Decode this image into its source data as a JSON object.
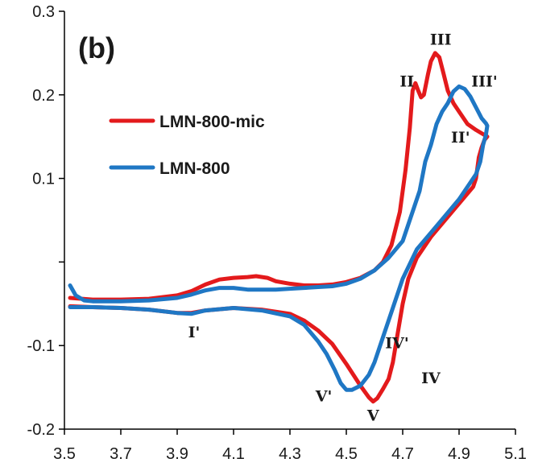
{
  "chart_data": {
    "type": "line",
    "panel_label": "(b)",
    "title": "",
    "xlabel": "",
    "ylabel": "",
    "xlim": [
      3.5,
      5.1
    ],
    "ylim": [
      -0.2,
      0.3
    ],
    "x_ticks": [
      "3.5",
      "3.7",
      "3.9",
      "4.1",
      "4.3",
      "4.5",
      "4.7",
      "4.9",
      "5.1"
    ],
    "y_ticks": [
      "0.3",
      "0.2",
      "0.1",
      "",
      "-0.1",
      "-0.2"
    ],
    "x_tick_values": [
      3.5,
      3.7,
      3.9,
      4.1,
      4.3,
      4.5,
      4.7,
      4.9,
      5.1
    ],
    "y_tick_values": [
      0.3,
      0.2,
      0.1,
      0.0,
      -0.1,
      -0.2
    ],
    "grid": false,
    "legend_position": "upper-left",
    "series": [
      {
        "name": "LMN-800-mic",
        "color": "#e31a1c",
        "points": [
          [
            3.52,
            -0.043
          ],
          [
            3.6,
            -0.045
          ],
          [
            3.7,
            -0.045
          ],
          [
            3.8,
            -0.044
          ],
          [
            3.9,
            -0.04
          ],
          [
            3.95,
            -0.035
          ],
          [
            4.0,
            -0.027
          ],
          [
            4.05,
            -0.021
          ],
          [
            4.1,
            -0.019
          ],
          [
            4.15,
            -0.018
          ],
          [
            4.18,
            -0.017
          ],
          [
            4.22,
            -0.019
          ],
          [
            4.25,
            -0.023
          ],
          [
            4.3,
            -0.026
          ],
          [
            4.35,
            -0.028
          ],
          [
            4.4,
            -0.028
          ],
          [
            4.45,
            -0.027
          ],
          [
            4.5,
            -0.024
          ],
          [
            4.55,
            -0.019
          ],
          [
            4.6,
            -0.01
          ],
          [
            4.63,
            0.0
          ],
          [
            4.66,
            0.02
          ],
          [
            4.69,
            0.06
          ],
          [
            4.71,
            0.11
          ],
          [
            4.725,
            0.16
          ],
          [
            4.735,
            0.205
          ],
          [
            4.745,
            0.214
          ],
          [
            4.755,
            0.205
          ],
          [
            4.765,
            0.197
          ],
          [
            4.775,
            0.2
          ],
          [
            4.79,
            0.225
          ],
          [
            4.8,
            0.24
          ],
          [
            4.815,
            0.25
          ],
          [
            4.83,
            0.245
          ],
          [
            4.845,
            0.225
          ],
          [
            4.86,
            0.205
          ],
          [
            4.88,
            0.19
          ],
          [
            4.9,
            0.18
          ],
          [
            4.93,
            0.165
          ],
          [
            4.96,
            0.158
          ],
          [
            4.99,
            0.152
          ],
          [
            5.0,
            0.15
          ],
          [
            4.99,
            0.146
          ],
          [
            4.98,
            0.137
          ],
          [
            4.97,
            0.125
          ],
          [
            4.96,
            0.1
          ],
          [
            4.95,
            0.09
          ],
          [
            4.9,
            0.07
          ],
          [
            4.85,
            0.05
          ],
          [
            4.8,
            0.03
          ],
          [
            4.75,
            0.005
          ],
          [
            4.72,
            -0.02
          ],
          [
            4.7,
            -0.05
          ],
          [
            4.68,
            -0.09
          ],
          [
            4.665,
            -0.12
          ],
          [
            4.65,
            -0.14
          ],
          [
            4.63,
            -0.152
          ],
          [
            4.61,
            -0.163
          ],
          [
            4.595,
            -0.167
          ],
          [
            4.58,
            -0.162
          ],
          [
            4.55,
            -0.148
          ],
          [
            4.5,
            -0.122
          ],
          [
            4.45,
            -0.098
          ],
          [
            4.4,
            -0.082
          ],
          [
            4.35,
            -0.07
          ],
          [
            4.3,
            -0.062
          ],
          [
            4.2,
            -0.057
          ],
          [
            4.1,
            -0.055
          ],
          [
            4.0,
            -0.058
          ],
          [
            3.95,
            -0.061
          ],
          [
            3.9,
            -0.061
          ],
          [
            3.8,
            -0.057
          ],
          [
            3.7,
            -0.055
          ],
          [
            3.6,
            -0.054
          ],
          [
            3.52,
            -0.053
          ]
        ]
      },
      {
        "name": "LMN-800",
        "color": "#1f77c4",
        "points": [
          [
            3.52,
            -0.028
          ],
          [
            3.54,
            -0.04
          ],
          [
            3.57,
            -0.046
          ],
          [
            3.6,
            -0.047
          ],
          [
            3.7,
            -0.047
          ],
          [
            3.8,
            -0.046
          ],
          [
            3.9,
            -0.043
          ],
          [
            3.95,
            -0.039
          ],
          [
            4.0,
            -0.034
          ],
          [
            4.05,
            -0.031
          ],
          [
            4.1,
            -0.031
          ],
          [
            4.15,
            -0.033
          ],
          [
            4.2,
            -0.033
          ],
          [
            4.25,
            -0.033
          ],
          [
            4.3,
            -0.032
          ],
          [
            4.35,
            -0.031
          ],
          [
            4.4,
            -0.03
          ],
          [
            4.45,
            -0.029
          ],
          [
            4.5,
            -0.026
          ],
          [
            4.55,
            -0.02
          ],
          [
            4.6,
            -0.01
          ],
          [
            4.65,
            0.005
          ],
          [
            4.7,
            0.025
          ],
          [
            4.72,
            0.045
          ],
          [
            4.74,
            0.065
          ],
          [
            4.76,
            0.085
          ],
          [
            4.78,
            0.12
          ],
          [
            4.8,
            0.14
          ],
          [
            4.82,
            0.165
          ],
          [
            4.84,
            0.18
          ],
          [
            4.86,
            0.19
          ],
          [
            4.88,
            0.204
          ],
          [
            4.9,
            0.21
          ],
          [
            4.92,
            0.207
          ],
          [
            4.94,
            0.198
          ],
          [
            4.96,
            0.185
          ],
          [
            4.98,
            0.172
          ],
          [
            4.995,
            0.166
          ],
          [
            5.0,
            0.163
          ],
          [
            4.995,
            0.152
          ],
          [
            4.985,
            0.14
          ],
          [
            4.975,
            0.12
          ],
          [
            4.96,
            0.105
          ],
          [
            4.93,
            0.09
          ],
          [
            4.9,
            0.075
          ],
          [
            4.85,
            0.055
          ],
          [
            4.8,
            0.035
          ],
          [
            4.75,
            0.015
          ],
          [
            4.7,
            -0.02
          ],
          [
            4.68,
            -0.04
          ],
          [
            4.65,
            -0.07
          ],
          [
            4.62,
            -0.1
          ],
          [
            4.6,
            -0.12
          ],
          [
            4.58,
            -0.135
          ],
          [
            4.55,
            -0.148
          ],
          [
            4.52,
            -0.153
          ],
          [
            4.5,
            -0.153
          ],
          [
            4.48,
            -0.145
          ],
          [
            4.46,
            -0.13
          ],
          [
            4.43,
            -0.11
          ],
          [
            4.4,
            -0.095
          ],
          [
            4.35,
            -0.075
          ],
          [
            4.3,
            -0.065
          ],
          [
            4.2,
            -0.058
          ],
          [
            4.1,
            -0.055
          ],
          [
            4.0,
            -0.058
          ],
          [
            3.95,
            -0.062
          ],
          [
            3.9,
            -0.061
          ],
          [
            3.8,
            -0.057
          ],
          [
            3.7,
            -0.055
          ],
          [
            3.6,
            -0.054
          ],
          [
            3.52,
            -0.054
          ]
        ]
      }
    ],
    "annotations": [
      {
        "text": "II",
        "x": 4.715,
        "y": 0.21
      },
      {
        "text": "III",
        "x": 4.835,
        "y": 0.26
      },
      {
        "text": "III'",
        "x": 4.99,
        "y": 0.21
      },
      {
        "text": "II'",
        "x": 4.905,
        "y": 0.143
      },
      {
        "text": "I'",
        "x": 3.96,
        "y": -0.09
      },
      {
        "text": "IV'",
        "x": 4.68,
        "y": -0.103
      },
      {
        "text": "IV",
        "x": 4.8,
        "y": -0.145
      },
      {
        "text": "V'",
        "x": 4.42,
        "y": -0.167
      },
      {
        "text": "V",
        "x": 4.595,
        "y": -0.19
      }
    ]
  }
}
